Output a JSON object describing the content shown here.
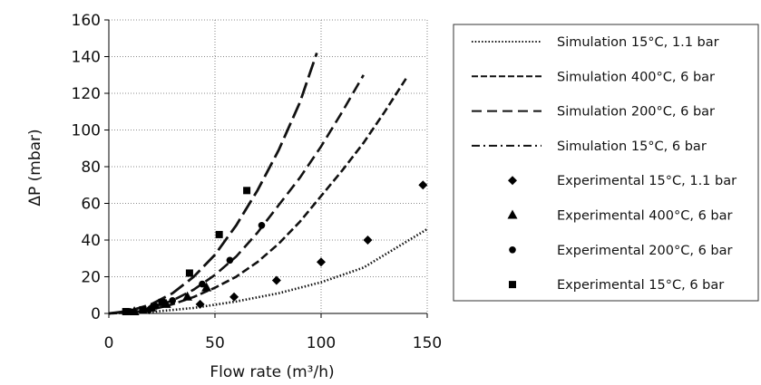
{
  "chart_data": {
    "type": "line",
    "title": "",
    "xlabel": "Flow rate (m³/h)",
    "ylabel": "ΔP (mbar)",
    "xlim": [
      0,
      150
    ],
    "ylim": [
      0,
      160
    ],
    "x_ticks": [
      0,
      50,
      100,
      150
    ],
    "y_ticks": [
      0,
      20,
      40,
      60,
      80,
      100,
      120,
      140,
      160
    ],
    "x_tick_labels": [
      "0",
      "50",
      "100",
      "150"
    ],
    "y_tick_labels": [
      "0",
      "20",
      "40",
      "60",
      "80",
      "100",
      "120",
      "140",
      "160"
    ],
    "grid": "vertical and horizontal dotted gridlines",
    "legend_placement": "right, outside plot",
    "series": [
      {
        "name": "Simulation 15°C, 1.1 bar",
        "kind": "line",
        "style": "dotted",
        "x": [
          0,
          20,
          40,
          60,
          80,
          100,
          120,
          150
        ],
        "y": [
          0,
          0.8,
          3,
          6.5,
          11,
          17,
          25,
          46
        ]
      },
      {
        "name": "Simulation 400°C, 6 bar",
        "kind": "line",
        "style": "short-dash",
        "x": [
          0,
          10,
          20,
          30,
          40,
          50,
          60,
          70,
          80,
          90,
          100,
          110,
          120,
          130,
          140
        ],
        "y": [
          0,
          0.5,
          2,
          5,
          9,
          14,
          20,
          28,
          38,
          50,
          64,
          78,
          93,
          110,
          128
        ]
      },
      {
        "name": "Simulation 200°C, 6 bar",
        "kind": "line",
        "style": "medium-dash",
        "x": [
          0,
          10,
          20,
          30,
          40,
          50,
          60,
          70,
          80,
          90,
          100,
          110,
          120
        ],
        "y": [
          0,
          1,
          3,
          7,
          13,
          21,
          31,
          44,
          59,
          74,
          91,
          110,
          130
        ]
      },
      {
        "name": "Simulation 15°C, 6 bar",
        "kind": "line",
        "style": "dash-dot",
        "x": [
          0,
          10,
          20,
          30,
          40,
          50,
          60,
          70,
          80,
          90,
          98
        ],
        "y": [
          0,
          1.5,
          5,
          11,
          20,
          32,
          48,
          67,
          89,
          115,
          142
        ]
      },
      {
        "name": "Experimental 15°C, 1.1 bar",
        "kind": "marker",
        "marker": "diamond",
        "x": [
          19,
          43,
          59,
          79,
          100,
          122,
          148
        ],
        "y": [
          2,
          5,
          9,
          18,
          28,
          40,
          70
        ]
      },
      {
        "name": "Experimental 400°C, 6 bar",
        "kind": "marker",
        "marker": "triangle",
        "x": [
          12,
          20,
          27,
          37,
          46
        ],
        "y": [
          1,
          3,
          5,
          9,
          14
        ]
      },
      {
        "name": "Experimental 200°C, 6 bar",
        "kind": "marker",
        "marker": "circle",
        "x": [
          10,
          16,
          22,
          30,
          44,
          57,
          72
        ],
        "y": [
          1,
          2,
          4,
          7,
          16,
          29,
          48
        ]
      },
      {
        "name": "Experimental 15°C, 6 bar",
        "kind": "marker",
        "marker": "square",
        "x": [
          8,
          16,
          25,
          38,
          52,
          65
        ],
        "y": [
          1,
          2,
          6,
          22,
          43,
          67
        ]
      }
    ]
  }
}
